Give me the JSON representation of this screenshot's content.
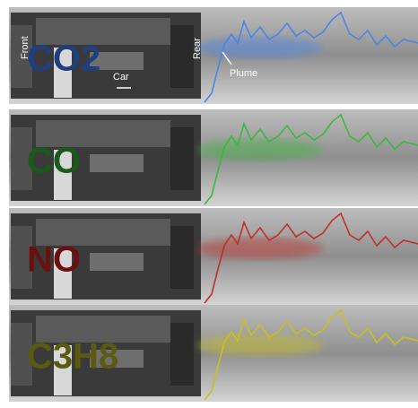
{
  "panels": [
    {
      "gas": "CO2"
    },
    {
      "gas": "CO"
    },
    {
      "gas": "NO"
    },
    {
      "gas": "C3H8"
    }
  ],
  "annotations": {
    "front": "Front",
    "rear": "Rear",
    "car": "Car",
    "plume": "Plume"
  }
}
